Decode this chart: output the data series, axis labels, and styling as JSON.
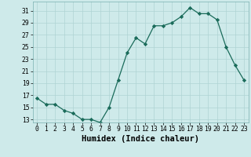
{
  "x": [
    0,
    1,
    2,
    3,
    4,
    5,
    6,
    7,
    8,
    9,
    10,
    11,
    12,
    13,
    14,
    15,
    16,
    17,
    18,
    19,
    20,
    21,
    22,
    23
  ],
  "y": [
    16.5,
    15.5,
    15.5,
    14.5,
    14.0,
    13.0,
    13.0,
    12.5,
    15.0,
    19.5,
    24.0,
    26.5,
    25.5,
    28.5,
    28.5,
    29.0,
    30.0,
    31.5,
    30.5,
    30.5,
    29.5,
    25.0,
    22.0,
    19.5
  ],
  "line_color": "#1a6b5a",
  "marker": "D",
  "marker_size": 2.2,
  "bg_color": "#ceeaea",
  "grid_color": "#afd4d4",
  "xlabel": "Humidex (Indice chaleur)",
  "ylim": [
    12.5,
    32.5
  ],
  "xlim": [
    -0.5,
    23.5
  ],
  "yticks": [
    13,
    15,
    17,
    19,
    21,
    23,
    25,
    27,
    29,
    31
  ],
  "xticks": [
    0,
    1,
    2,
    3,
    4,
    5,
    6,
    7,
    8,
    9,
    10,
    11,
    12,
    13,
    14,
    15,
    16,
    17,
    18,
    19,
    20,
    21,
    22,
    23
  ],
  "tick_fontsize": 5.8,
  "label_fontsize": 7.5,
  "linewidth": 0.9
}
